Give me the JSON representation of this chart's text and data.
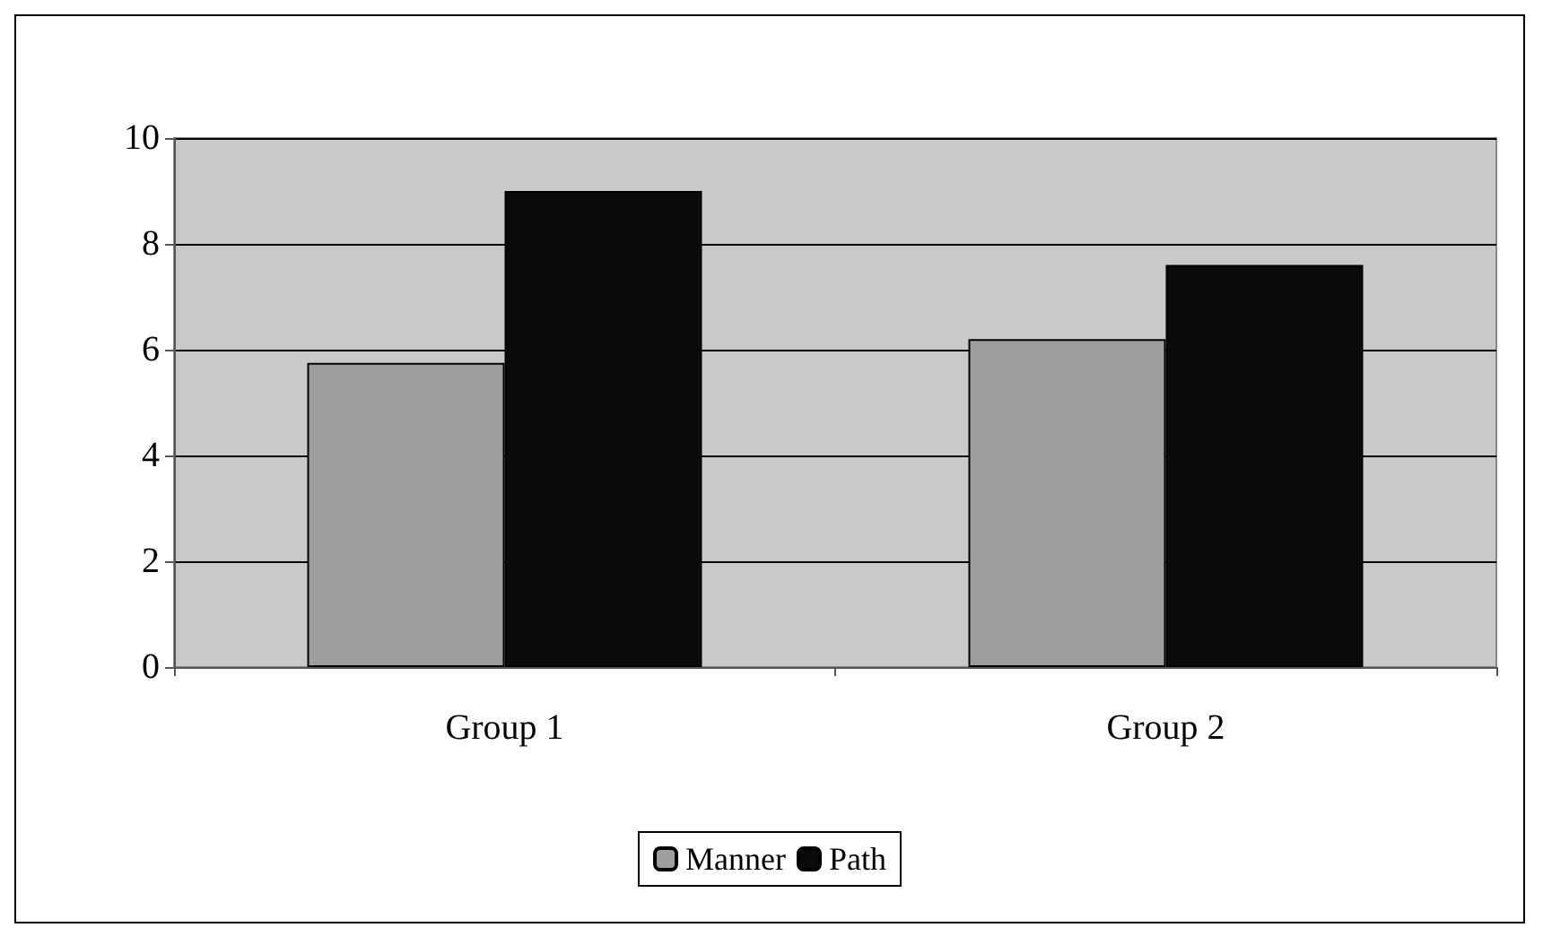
{
  "chart_data": {
    "type": "bar",
    "categories": [
      "Group 1",
      "Group 2"
    ],
    "series": [
      {
        "name": "Manner",
        "color": "#9e9e9e",
        "values": [
          5.75,
          6.2
        ]
      },
      {
        "name": "Path",
        "color": "#0a0a0a",
        "values": [
          9,
          7.6
        ]
      }
    ],
    "ylim": [
      0,
      10
    ],
    "yticks": [
      0,
      2,
      4,
      6,
      8,
      10
    ],
    "grid": "y",
    "legend": "bottom"
  }
}
